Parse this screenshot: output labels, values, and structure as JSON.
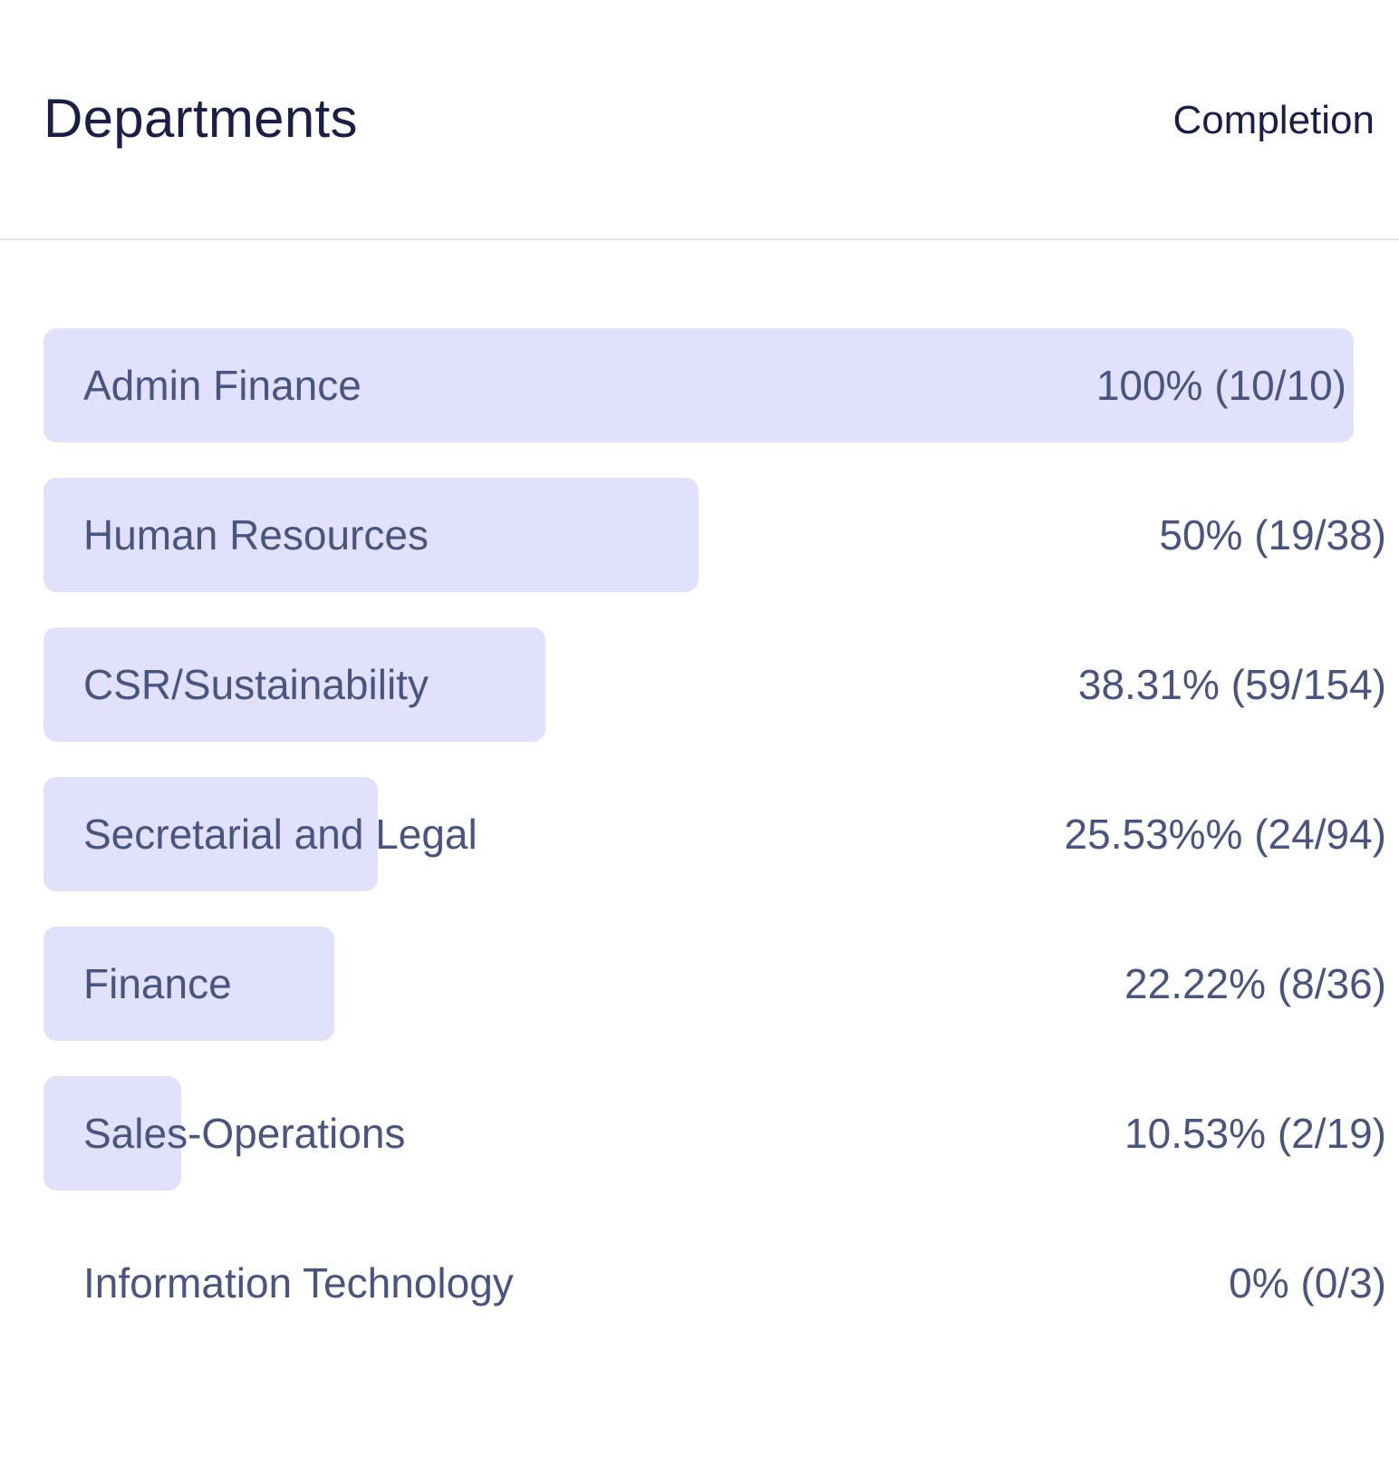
{
  "header": {
    "title": "Departments",
    "column_label": "Completion"
  },
  "colors": {
    "bar": "#e1e1fb",
    "text": "#4a557f",
    "heading": "#1c1f45"
  },
  "chart_data": {
    "type": "bar",
    "orientation": "horizontal",
    "title": "Departments",
    "value_header": "Completion",
    "xlim": [
      0,
      100
    ],
    "categories": [
      "Admin Finance",
      "Human Resources",
      "CSR/Sustainability",
      "Secretarial and Legal",
      "Finance",
      "Sales-Operations",
      "Information Technology"
    ],
    "values": [
      100,
      50,
      38.31,
      25.53,
      22.22,
      10.53,
      0
    ],
    "value_labels": [
      "100% (10/10)",
      "50% (19/38)",
      "38.31% (59/154)",
      "25.53%% (24/94)",
      "22.22% (8/36)",
      "10.53% (2/19)",
      "0% (0/3)"
    ]
  }
}
